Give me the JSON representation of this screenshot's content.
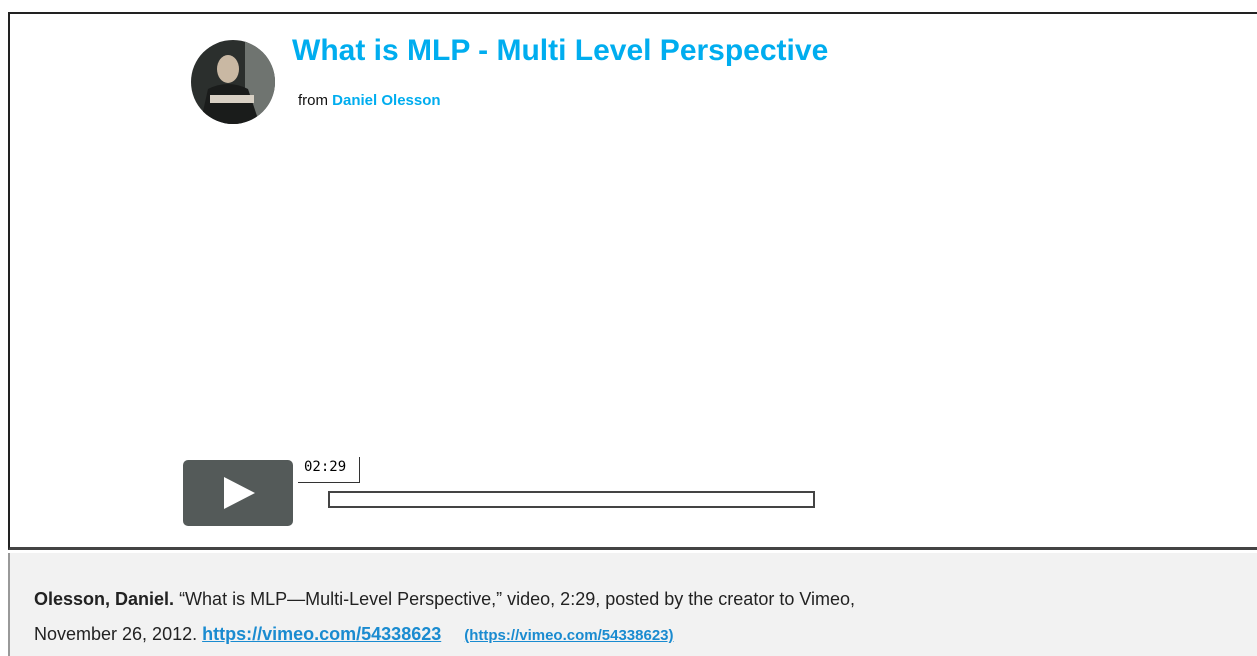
{
  "embed": {
    "title": "What is MLP - Multi Level Perspective",
    "from_label": "from",
    "author": "Daniel Olesson",
    "duration": "02:29"
  },
  "citation": {
    "author": "Olesson, Daniel.",
    "line1": "“What is MLP—Multi-Level Perspective,” video, 2:29, posted by the creator to Vimeo,",
    "line2": "November 26, 2012.",
    "link": "https://vimeo.com/54338623",
    "link_paren": "(https://vimeo.com/54338623)"
  }
}
